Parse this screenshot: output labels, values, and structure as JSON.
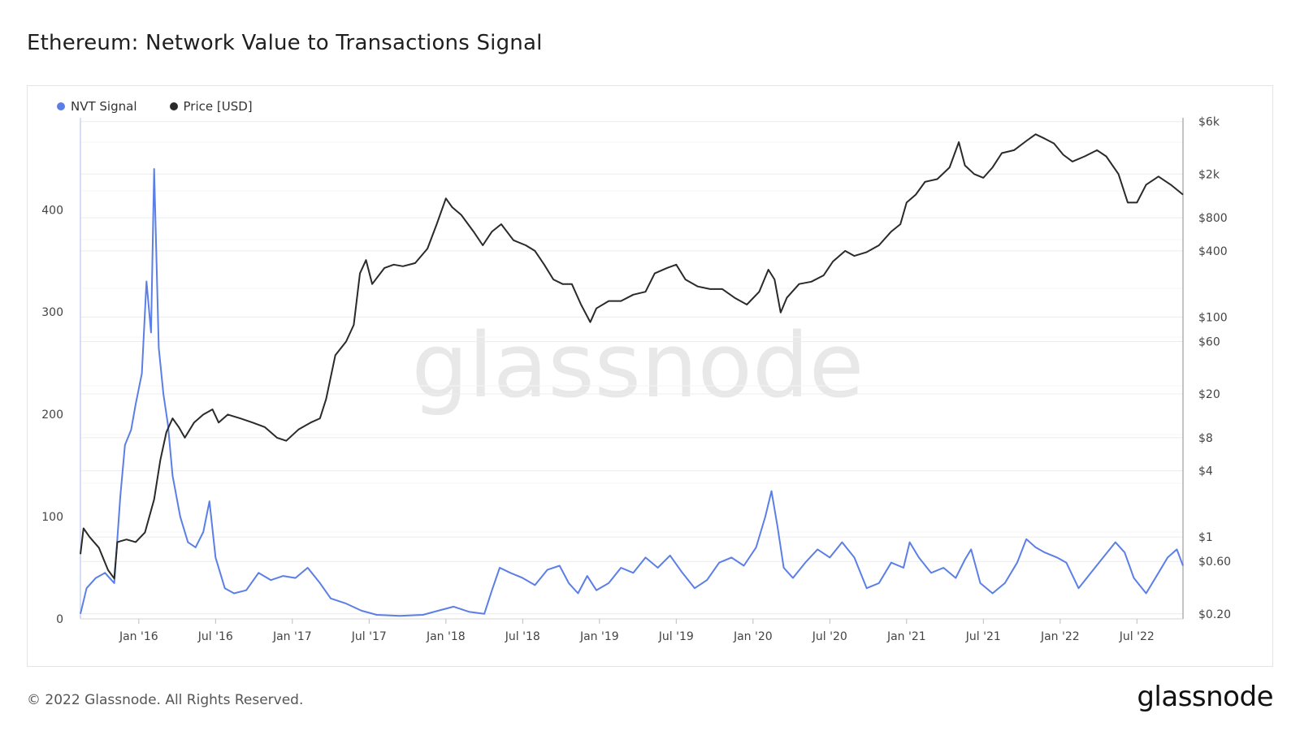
{
  "title": "Ethereum: Network Value to Transactions Signal",
  "legend": [
    {
      "name": "NVT Signal",
      "color": "#5b7fe6"
    },
    {
      "name": "Price [USD]",
      "color": "#2a2a2a"
    }
  ],
  "watermark": "glassnode",
  "footer": {
    "copyright": "© 2022 Glassnode. All Rights Reserved.",
    "logo": "glassnode"
  },
  "chart_data": {
    "type": "line",
    "title": "Ethereum: Network Value to Transactions Signal",
    "x_range": [
      2015.62,
      2022.8
    ],
    "x_ticks": [
      {
        "label": "Jan '16",
        "t": 2016.0
      },
      {
        "label": "Jul '16",
        "t": 2016.5
      },
      {
        "label": "Jan '17",
        "t": 2017.0
      },
      {
        "label": "Jul '17",
        "t": 2017.5
      },
      {
        "label": "Jan '18",
        "t": 2018.0
      },
      {
        "label": "Jul '18",
        "t": 2018.5
      },
      {
        "label": "Jan '19",
        "t": 2019.0
      },
      {
        "label": "Jul '19",
        "t": 2019.5
      },
      {
        "label": "Jan '20",
        "t": 2020.0
      },
      {
        "label": "Jul '20",
        "t": 2020.5
      },
      {
        "label": "Jan '21",
        "t": 2021.0
      },
      {
        "label": "Jul '21",
        "t": 2021.5
      },
      {
        "label": "Jan '22",
        "t": 2022.0
      },
      {
        "label": "Jul '22",
        "t": 2022.5
      }
    ],
    "y_left": {
      "min": 0,
      "max": 490,
      "ticks": [
        0,
        100,
        200,
        300,
        400
      ]
    },
    "y_right": {
      "scale": "log",
      "min": 0.18,
      "max": 6500,
      "ticks": [
        {
          "label": "$6k",
          "v": 6000
        },
        {
          "label": "$2k",
          "v": 2000
        },
        {
          "label": "$800",
          "v": 800
        },
        {
          "label": "$400",
          "v": 400
        },
        {
          "label": "$100",
          "v": 100
        },
        {
          "label": "$60",
          "v": 60
        },
        {
          "label": "$20",
          "v": 20
        },
        {
          "label": "$8",
          "v": 8
        },
        {
          "label": "$4",
          "v": 4
        },
        {
          "label": "$1",
          "v": 1
        },
        {
          "label": "$0.60",
          "v": 0.6
        },
        {
          "label": "$0.20",
          "v": 0.2
        }
      ]
    },
    "series": [
      {
        "name": "NVT Signal",
        "axis": "left",
        "color": "#5b7fe6",
        "points": [
          [
            2015.62,
            5
          ],
          [
            2015.66,
            30
          ],
          [
            2015.72,
            40
          ],
          [
            2015.78,
            45
          ],
          [
            2015.84,
            35
          ],
          [
            2015.88,
            120
          ],
          [
            2015.91,
            170
          ],
          [
            2015.95,
            185
          ],
          [
            2015.98,
            210
          ],
          [
            2016.02,
            240
          ],
          [
            2016.05,
            330
          ],
          [
            2016.08,
            280
          ],
          [
            2016.1,
            440
          ],
          [
            2016.13,
            265
          ],
          [
            2016.16,
            220
          ],
          [
            2016.19,
            190
          ],
          [
            2016.22,
            140
          ],
          [
            2016.27,
            100
          ],
          [
            2016.32,
            75
          ],
          [
            2016.37,
            70
          ],
          [
            2016.42,
            85
          ],
          [
            2016.46,
            115
          ],
          [
            2016.5,
            60
          ],
          [
            2016.56,
            30
          ],
          [
            2016.62,
            25
          ],
          [
            2016.7,
            28
          ],
          [
            2016.78,
            45
          ],
          [
            2016.86,
            38
          ],
          [
            2016.94,
            42
          ],
          [
            2017.02,
            40
          ],
          [
            2017.1,
            50
          ],
          [
            2017.18,
            35
          ],
          [
            2017.25,
            20
          ],
          [
            2017.35,
            15
          ],
          [
            2017.45,
            8
          ],
          [
            2017.55,
            4
          ],
          [
            2017.7,
            3
          ],
          [
            2017.85,
            4
          ],
          [
            2017.95,
            8
          ],
          [
            2018.05,
            12
          ],
          [
            2018.15,
            7
          ],
          [
            2018.25,
            5
          ],
          [
            2018.3,
            28
          ],
          [
            2018.35,
            50
          ],
          [
            2018.42,
            45
          ],
          [
            2018.5,
            40
          ],
          [
            2018.58,
            33
          ],
          [
            2018.66,
            48
          ],
          [
            2018.74,
            52
          ],
          [
            2018.8,
            35
          ],
          [
            2018.86,
            25
          ],
          [
            2018.92,
            42
          ],
          [
            2018.98,
            28
          ],
          [
            2019.06,
            35
          ],
          [
            2019.14,
            50
          ],
          [
            2019.22,
            45
          ],
          [
            2019.3,
            60
          ],
          [
            2019.38,
            50
          ],
          [
            2019.46,
            62
          ],
          [
            2019.54,
            45
          ],
          [
            2019.62,
            30
          ],
          [
            2019.7,
            38
          ],
          [
            2019.78,
            55
          ],
          [
            2019.86,
            60
          ],
          [
            2019.94,
            52
          ],
          [
            2020.02,
            70
          ],
          [
            2020.08,
            100
          ],
          [
            2020.12,
            125
          ],
          [
            2020.16,
            90
          ],
          [
            2020.2,
            50
          ],
          [
            2020.26,
            40
          ],
          [
            2020.34,
            55
          ],
          [
            2020.42,
            68
          ],
          [
            2020.5,
            60
          ],
          [
            2020.58,
            75
          ],
          [
            2020.66,
            60
          ],
          [
            2020.74,
            30
          ],
          [
            2020.82,
            35
          ],
          [
            2020.9,
            55
          ],
          [
            2020.98,
            50
          ],
          [
            2021.02,
            75
          ],
          [
            2021.08,
            60
          ],
          [
            2021.16,
            45
          ],
          [
            2021.24,
            50
          ],
          [
            2021.32,
            40
          ],
          [
            2021.38,
            58
          ],
          [
            2021.42,
            68
          ],
          [
            2021.48,
            35
          ],
          [
            2021.56,
            25
          ],
          [
            2021.64,
            35
          ],
          [
            2021.72,
            55
          ],
          [
            2021.78,
            78
          ],
          [
            2021.84,
            70
          ],
          [
            2021.9,
            65
          ],
          [
            2021.98,
            60
          ],
          [
            2022.04,
            55
          ],
          [
            2022.12,
            30
          ],
          [
            2022.2,
            45
          ],
          [
            2022.28,
            60
          ],
          [
            2022.36,
            75
          ],
          [
            2022.42,
            65
          ],
          [
            2022.48,
            40
          ],
          [
            2022.56,
            25
          ],
          [
            2022.64,
            45
          ],
          [
            2022.7,
            60
          ],
          [
            2022.76,
            68
          ],
          [
            2022.8,
            52
          ]
        ]
      },
      {
        "name": "Price [USD]",
        "axis": "right",
        "color": "#2a2a2a",
        "points": [
          [
            2015.62,
            0.7
          ],
          [
            2015.64,
            1.2
          ],
          [
            2015.68,
            1.0
          ],
          [
            2015.74,
            0.8
          ],
          [
            2015.8,
            0.5
          ],
          [
            2015.84,
            0.42
          ],
          [
            2015.86,
            0.9
          ],
          [
            2015.92,
            0.95
          ],
          [
            2015.98,
            0.9
          ],
          [
            2016.04,
            1.1
          ],
          [
            2016.1,
            2.2
          ],
          [
            2016.14,
            5
          ],
          [
            2016.18,
            9
          ],
          [
            2016.22,
            12
          ],
          [
            2016.26,
            10
          ],
          [
            2016.3,
            8
          ],
          [
            2016.36,
            11
          ],
          [
            2016.42,
            13
          ],
          [
            2016.48,
            14.5
          ],
          [
            2016.52,
            11
          ],
          [
            2016.58,
            13
          ],
          [
            2016.66,
            12
          ],
          [
            2016.74,
            11
          ],
          [
            2016.82,
            10
          ],
          [
            2016.9,
            8
          ],
          [
            2016.96,
            7.5
          ],
          [
            2017.04,
            9.5
          ],
          [
            2017.12,
            11
          ],
          [
            2017.18,
            12
          ],
          [
            2017.22,
            18
          ],
          [
            2017.28,
            45
          ],
          [
            2017.35,
            60
          ],
          [
            2017.4,
            85
          ],
          [
            2017.44,
            250
          ],
          [
            2017.48,
            330
          ],
          [
            2017.52,
            200
          ],
          [
            2017.6,
            280
          ],
          [
            2017.66,
            300
          ],
          [
            2017.72,
            290
          ],
          [
            2017.8,
            310
          ],
          [
            2017.88,
            420
          ],
          [
            2017.94,
            700
          ],
          [
            2018.0,
            1200
          ],
          [
            2018.04,
            1000
          ],
          [
            2018.1,
            850
          ],
          [
            2018.18,
            600
          ],
          [
            2018.24,
            450
          ],
          [
            2018.3,
            600
          ],
          [
            2018.36,
            700
          ],
          [
            2018.44,
            500
          ],
          [
            2018.52,
            450
          ],
          [
            2018.58,
            400
          ],
          [
            2018.64,
            300
          ],
          [
            2018.7,
            220
          ],
          [
            2018.76,
            200
          ],
          [
            2018.82,
            200
          ],
          [
            2018.88,
            130
          ],
          [
            2018.94,
            90
          ],
          [
            2018.98,
            120
          ],
          [
            2019.06,
            140
          ],
          [
            2019.14,
            140
          ],
          [
            2019.22,
            160
          ],
          [
            2019.3,
            170
          ],
          [
            2019.36,
            250
          ],
          [
            2019.44,
            280
          ],
          [
            2019.5,
            300
          ],
          [
            2019.56,
            220
          ],
          [
            2019.64,
            190
          ],
          [
            2019.72,
            180
          ],
          [
            2019.8,
            180
          ],
          [
            2019.88,
            150
          ],
          [
            2019.96,
            130
          ],
          [
            2020.04,
            170
          ],
          [
            2020.1,
            270
          ],
          [
            2020.14,
            220
          ],
          [
            2020.18,
            110
          ],
          [
            2020.22,
            150
          ],
          [
            2020.3,
            200
          ],
          [
            2020.38,
            210
          ],
          [
            2020.46,
            240
          ],
          [
            2020.52,
            320
          ],
          [
            2020.6,
            400
          ],
          [
            2020.66,
            360
          ],
          [
            2020.74,
            390
          ],
          [
            2020.82,
            450
          ],
          [
            2020.9,
            600
          ],
          [
            2020.96,
            700
          ],
          [
            2021.0,
            1100
          ],
          [
            2021.06,
            1300
          ],
          [
            2021.12,
            1700
          ],
          [
            2021.2,
            1800
          ],
          [
            2021.28,
            2300
          ],
          [
            2021.34,
            3900
          ],
          [
            2021.38,
            2400
          ],
          [
            2021.44,
            2000
          ],
          [
            2021.5,
            1850
          ],
          [
            2021.56,
            2300
          ],
          [
            2021.62,
            3100
          ],
          [
            2021.7,
            3300
          ],
          [
            2021.78,
            4000
          ],
          [
            2021.84,
            4600
          ],
          [
            2021.9,
            4200
          ],
          [
            2021.96,
            3800
          ],
          [
            2022.02,
            3000
          ],
          [
            2022.08,
            2600
          ],
          [
            2022.16,
            2900
          ],
          [
            2022.24,
            3300
          ],
          [
            2022.3,
            2900
          ],
          [
            2022.38,
            2000
          ],
          [
            2022.44,
            1100
          ],
          [
            2022.5,
            1100
          ],
          [
            2022.56,
            1600
          ],
          [
            2022.64,
            1900
          ],
          [
            2022.72,
            1600
          ],
          [
            2022.8,
            1300
          ]
        ]
      }
    ]
  }
}
